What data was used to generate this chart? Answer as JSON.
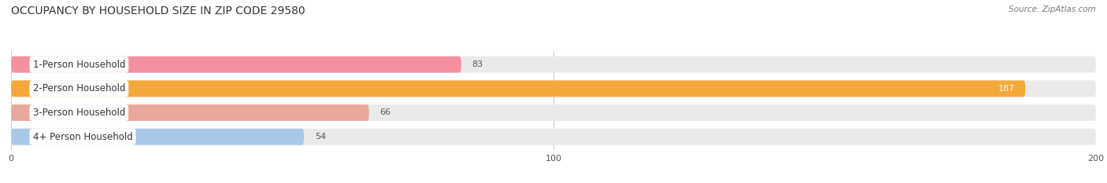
{
  "title": "OCCUPANCY BY HOUSEHOLD SIZE IN ZIP CODE 29580",
  "source": "Source: ZipAtlas.com",
  "categories": [
    "1-Person Household",
    "2-Person Household",
    "3-Person Household",
    "4+ Person Household"
  ],
  "values": [
    83,
    187,
    66,
    54
  ],
  "bar_colors": [
    "#F4909F",
    "#F5A83A",
    "#E8A89C",
    "#A8C8E8"
  ],
  "bg_bar_color": "#EAEAEA",
  "xlim": [
    0,
    200
  ],
  "xticks": [
    0,
    100,
    200
  ],
  "figsize": [
    14.06,
    2.33
  ],
  "dpi": 100,
  "title_fontsize": 10,
  "label_fontsize": 8.5,
  "value_fontsize": 8,
  "bar_height": 0.68,
  "bg_color": "#FFFFFF",
  "grid_color": "#CCCCCC",
  "label_box_color": "#FFFFFF",
  "value_label_color_inside": "#FFFFFF",
  "value_label_color_outside": "#555555"
}
